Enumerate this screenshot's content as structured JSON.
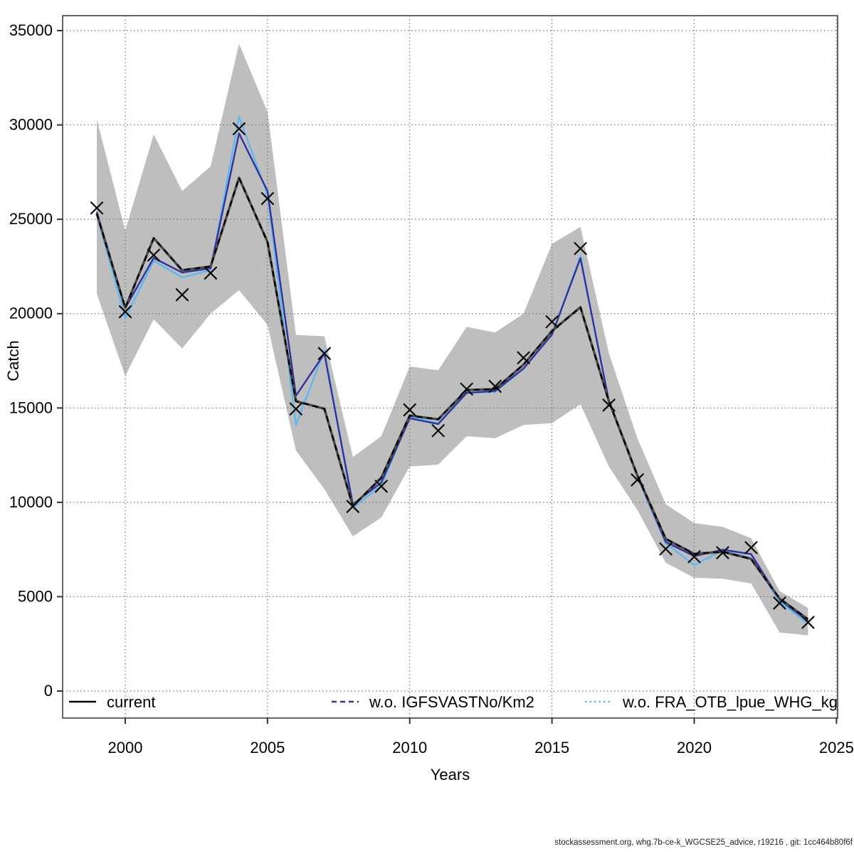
{
  "figure": {
    "footer": "stockassessment.org, whg.7b-ce-k_WGCSE25_advice, r19216 , git: 1cc464b80f6f"
  },
  "chart_data": {
    "type": "line",
    "title": "",
    "xlabel": "Years",
    "ylabel": "Catch",
    "x": [
      1999,
      2000,
      2001,
      2002,
      2003,
      2004,
      2005,
      2006,
      2007,
      2008,
      2009,
      2010,
      2011,
      2012,
      2013,
      2014,
      2015,
      2016,
      2017,
      2018,
      2019,
      2020,
      2021,
      2022,
      2023,
      2024
    ],
    "xticks": [
      2000,
      2005,
      2010,
      2015,
      2020,
      2025
    ],
    "yticks": [
      0,
      5000,
      10000,
      15000,
      20000,
      25000,
      30000,
      35000
    ],
    "xlim": [
      1997.8,
      2025.05
    ],
    "ylim": [
      -1350,
      35800
    ],
    "grid": "dotted",
    "legend_position": "bottom-inside",
    "marker": "x",
    "band": {
      "name": "confidence-band",
      "color": "#BEBEBE",
      "upper": [
        30300,
        24400,
        29500,
        26500,
        27800,
        34300,
        30700,
        18870,
        18800,
        12400,
        13500,
        17200,
        17000,
        19300,
        19000,
        20000,
        23700,
        24600,
        17900,
        13400,
        9900,
        8900,
        8700,
        8100,
        5300,
        4400
      ],
      "lower": [
        21050,
        16700,
        19700,
        18150,
        20000,
        21250,
        19400,
        12750,
        10700,
        8200,
        9200,
        11900,
        12000,
        13500,
        13400,
        14100,
        14200,
        15200,
        11900,
        9600,
        6800,
        6000,
        5950,
        5700,
        3100,
        2950
      ]
    },
    "series": [
      {
        "name": "current",
        "color": "#000000",
        "underlay": "#4a4a4a",
        "legend_dash": "solid",
        "values": [
          25300,
          20300,
          24000,
          22300,
          22500,
          27200,
          23800,
          15360,
          14960,
          9800,
          11300,
          14600,
          14400,
          15950,
          16000,
          17300,
          19080,
          20340,
          15370,
          11430,
          8060,
          7270,
          7380,
          7000,
          4900,
          3800
        ]
      },
      {
        "name": "w.o. IGFSVASTNo/Km2",
        "color": "#32329B",
        "legend_dash": "dashed",
        "values": [
          25400,
          20300,
          22950,
          22180,
          22400,
          29550,
          26500,
          15650,
          17880,
          9900,
          11050,
          14450,
          14150,
          15800,
          15900,
          17090,
          18890,
          22940,
          15370,
          11400,
          7900,
          7150,
          7490,
          7260,
          4850,
          3700
        ]
      },
      {
        "name": "w.o. FRA_OTB_lpue_WHG_kg_h",
        "color": "#5FB8EF",
        "legend_dash": "dotted",
        "values": [
          25250,
          19750,
          22800,
          21920,
          22300,
          30450,
          26300,
          14100,
          18050,
          9700,
          10900,
          14550,
          14200,
          15800,
          15850,
          17080,
          18890,
          23050,
          15300,
          11350,
          7830,
          6680,
          7440,
          7050,
          4750,
          3560
        ]
      }
    ],
    "observations": {
      "name": "observed-catch",
      "marker": "x",
      "color": "#0a0a0a",
      "values": [
        25600,
        20100,
        23100,
        21000,
        22150,
        29800,
        26100,
        14950,
        17890,
        9780,
        10850,
        14900,
        13800,
        16000,
        16150,
        17660,
        19570,
        23450,
        15150,
        11190,
        7530,
        7120,
        7330,
        7600,
        4660,
        3640
      ]
    },
    "colors": {
      "band": "#BEBEBE",
      "grid": "#737373",
      "border": "#666666",
      "text": "#000000"
    }
  }
}
